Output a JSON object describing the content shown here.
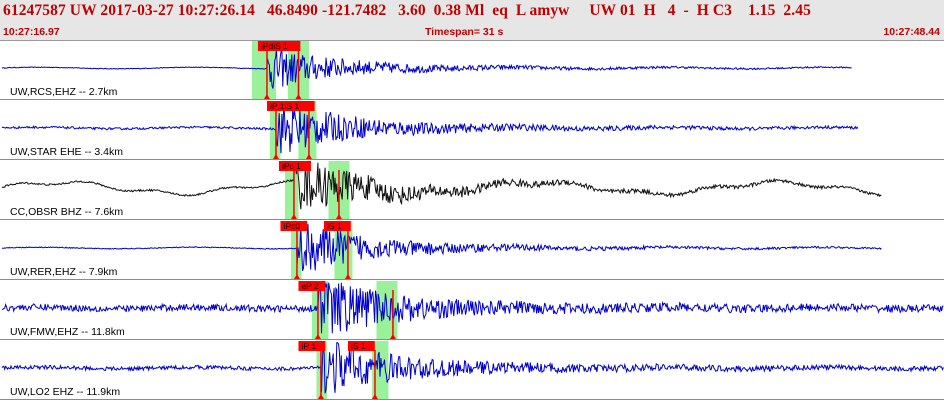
{
  "header": {
    "event_id": "61247587",
    "network": "UW",
    "datetime": "2017-03-27 10:27:26.14",
    "latitude": "46.8490",
    "longitude": "-121.7482",
    "depth": "3.60",
    "magnitude": "0.38",
    "mag_type": "Ml",
    "event_type": "eq",
    "event_flag": "L",
    "analyst": "amyw",
    "source": "UW 01",
    "h_flag": "H",
    "count": "4",
    "dash": "-",
    "quality": "H C3",
    "value1": "1.15",
    "value2": "2.45",
    "start_time": "10:27:16.97",
    "end_time": "10:27:48.44",
    "timespan": "Timespan=  31 s"
  },
  "colors": {
    "trace": "#0000cc",
    "trace_black": "#111111",
    "pick": "#ff0000",
    "window": "#88ee88",
    "header_text": "#c00000",
    "header_bg": "#e6e6e6"
  },
  "channels": [
    {
      "label": "UW,RCS,EHZ -- 2.7km",
      "color": "blue",
      "picks": [
        {
          "label": "iPdiS 1",
          "time": 8.6
        }
      ],
      "windows": [
        [
          8.4,
          9.2
        ],
        [
          9.6,
          10.3
        ]
      ],
      "marks": [
        8.9,
        9.95
      ],
      "onset": 8.9,
      "ends_at": 28.4,
      "noise": 0.04,
      "peak": 0.75
    },
    {
      "label": "UW,STAR EHE -- 3.4km",
      "color": "blue",
      "picks": [
        {
          "label": "iP 1iS 1",
          "time": 8.9
        }
      ],
      "windows": [
        [
          9.0,
          9.35
        ],
        [
          9.95,
          10.55
        ]
      ],
      "marks": [
        9.2,
        10.3
      ],
      "onset": 9.2,
      "ends_at": 28.6,
      "noise": 0.12,
      "peak": 0.95
    },
    {
      "label": "CC,OBSR BHZ -- 7.6km",
      "color": "black",
      "picks": [
        {
          "label": "iPc 1",
          "time": 9.3
        }
      ],
      "windows": [
        [
          9.5,
          9.95
        ],
        [
          10.95,
          11.65
        ]
      ],
      "marks": [
        9.8,
        11.3
      ],
      "onset": 9.8,
      "ends_at": 29.4,
      "noise": 0.1,
      "peak": 1.0
    },
    {
      "label": "UW,RER,EHZ -- 7.9km",
      "color": "blue",
      "picks": [
        {
          "label": "iPc0",
          "time": 9.35
        },
        {
          "label": "iS 1",
          "time": 10.8
        }
      ],
      "windows": [
        [
          9.7,
          10.05
        ],
        [
          11.15,
          11.75
        ]
      ],
      "marks": [
        9.9,
        11.6
      ],
      "onset": 9.9,
      "ends_at": 29.4,
      "noise": 0.05,
      "peak": 0.95
    },
    {
      "label": "UW,FMW,EHZ -- 11.8km",
      "color": "blue",
      "picks": [
        {
          "label": "eP 2",
          "time": 9.95
        }
      ],
      "windows": [
        [
          10.4,
          10.95
        ],
        [
          12.55,
          13.25
        ]
      ],
      "marks": [
        10.6,
        13.1
      ],
      "onset": 10.6,
      "ends_at": 31.47,
      "noise": 0.38,
      "peak": 1.0
    },
    {
      "label": "UW,LO2 EHZ -- 11.9km",
      "color": "blue",
      "picks": [
        {
          "label": "iP 1",
          "time": 9.95
        },
        {
          "label": "iS 1",
          "time": 11.6
        }
      ],
      "windows": [
        [
          10.55,
          10.9
        ],
        [
          12.4,
          12.95
        ]
      ],
      "marks": [
        10.7,
        12.5
      ],
      "onset": 10.7,
      "ends_at": 31.47,
      "noise": 0.22,
      "peak": 1.0
    }
  ],
  "time_axis": {
    "start_s": 0,
    "end_s": 31.47
  }
}
